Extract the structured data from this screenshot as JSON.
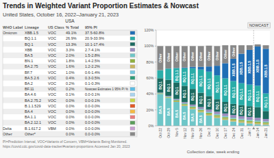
{
  "chart_data": [
    {
      "type": "table",
      "title": "USA",
      "columns": [
        "WHO Label",
        "Lineage",
        "US Class",
        "% Total",
        "95% PI"
      ],
      "rows": [
        [
          "Omicron",
          "XBB.1.5",
          "VOC",
          "49.1%",
          "37.5-60.8%"
        ],
        [
          null,
          "BQ.1.1",
          "VOC",
          "26.9%",
          "20.9-33.9%"
        ],
        [
          null,
          "BQ.1",
          "VOC",
          "13.3%",
          "10.1-17.4%"
        ],
        [
          null,
          "XBB",
          "VOC",
          "3.3%",
          "2.7-4.1%"
        ],
        [
          null,
          "BA.5",
          "VOC",
          "2.0%",
          "1.5-2.8%"
        ],
        [
          null,
          "BN.1",
          "VOC",
          "1.8%",
          "1.4-2.5%"
        ],
        [
          null,
          "BA.2.75",
          "VOC",
          "1.6%",
          "1.2-2.2%"
        ],
        [
          null,
          "BF.7",
          "VOC",
          "1.0%",
          "0.6-1.4%"
        ],
        [
          null,
          "BA.5.2.6",
          "VOC",
          "0.4%",
          "0.3-0.5%"
        ],
        [
          null,
          "BA.2",
          "VOC",
          "0.2%",
          "0.1-0.3%"
        ],
        [
          null,
          "BF.11",
          "VOC",
          "0.2%",
          "Nowcast Estimates 1 95% PI %"
        ],
        [
          null,
          "BA.4.6",
          "VOC",
          "0.1%",
          "0.0-0.1%"
        ],
        [
          null,
          "BA.2.75.2",
          "VOC",
          "0.0%",
          "0.0-0.1%"
        ],
        [
          null,
          "B.1.1.529",
          "VOC",
          "0.0%",
          "0.0-0.0%"
        ],
        [
          null,
          "BA.4",
          "VOC",
          "0.0%",
          "0.0-0.0%"
        ],
        [
          null,
          "BA.1.1",
          "VOC",
          "0.0%",
          "0.0-0.0%"
        ],
        [
          null,
          "BA.2.12.1",
          "VOC",
          "0.0%",
          "0.0-0.0%"
        ],
        [
          "Delta",
          "B.1.617.2",
          "VBM",
          "0.0%",
          "0.0-0.0%"
        ],
        [
          "Other",
          "Other*",
          null,
          "0.0%",
          "0.0-0.0%"
        ]
      ],
      "colors": [
        "#1f6eb5",
        "#2aada8",
        "#1d6b61",
        "#9b8dbe",
        "#6ec6c8",
        "#8fb040",
        "#c8b560",
        "#7bc8e0",
        "#2e9b78",
        "#ffffff",
        "#5bbce4",
        "#aad4ef",
        "#c8d84b",
        "#e05a28",
        "#f5b942",
        "#e87d7d",
        "#5b9e5b",
        "#c8a0d2",
        "#888888"
      ]
    },
    {
      "type": "bar",
      "stacked": true,
      "grid": true,
      "title": "Trends in Weighted Variant Proportion Estimates & Nowcast",
      "subtitle": "United States, October 16, 2022–January 21, 2023",
      "xlabel": "Collection date, week ending",
      "annotations": [
        "NOWCAST"
      ],
      "footnote": "PI=Prediction Interval, VOC=Variants of Concern, VBM=Variants Being Monitored. https://covid.cdc.gov/covid-data-tracker/#variant-proportions Accessed Jan 20, 2023",
      "categories": [
        "Oct 22",
        "Oct 29",
        "Nov 5",
        "Nov 12",
        "Nov 19",
        "Nov 26",
        "Dec 3",
        "Dec 10",
        "Dec 17",
        "Dec 24",
        "Dec 31",
        "Jan 7",
        "Jan 14",
        "Jan 21"
      ],
      "series": [
        {
          "name": "BA.5",
          "color": "#6ec6c8",
          "values": [
            40.0,
            35.0,
            30.0,
            25.0,
            21.0,
            17.0,
            13.0,
            10.0,
            7.5,
            5.5,
            4.0,
            3.0,
            2.0,
            1.5
          ]
        },
        {
          "name": "BA.2.75",
          "color": "#c8b560",
          "values": [
            0.3,
            0.5,
            0.8,
            1.0,
            1.2,
            1.4,
            1.5,
            1.6,
            1.6,
            1.6,
            1.6,
            1.6,
            1.6,
            1.4
          ]
        },
        {
          "name": "BN.1",
          "color": "#8fb040",
          "values": [
            0.5,
            0.8,
            1.0,
            1.3,
            1.5,
            1.6,
            1.7,
            1.8,
            1.8,
            1.8,
            1.8,
            1.8,
            1.8,
            1.5
          ]
        },
        {
          "name": "BF.7",
          "color": "#7bc8e0",
          "values": [
            0.2,
            0.3,
            0.5,
            0.7,
            0.8,
            0.9,
            1.0,
            1.0,
            1.0,
            1.0,
            1.0,
            1.0,
            1.0,
            0.9
          ]
        },
        {
          "name": "BA.5.2.6",
          "color": "#2e9b78",
          "values": [
            0.2,
            0.3,
            0.4,
            0.4,
            0.4,
            0.4,
            0.4,
            0.4,
            0.4,
            0.4,
            0.4,
            0.4,
            0.4,
            0.3
          ]
        },
        {
          "name": "XBB",
          "color": "#9b8dbe",
          "values": [
            0.5,
            0.8,
            1.0,
            1.3,
            1.8,
            2.2,
            2.8,
            3.0,
            3.2,
            3.3,
            3.3,
            3.4,
            3.3,
            3.0
          ]
        },
        {
          "name": "BQ.1",
          "color": "#1d6b61",
          "values": [
            18.0,
            20.0,
            20.5,
            20.5,
            19.5,
            18.0,
            17.0,
            15.5,
            14.5,
            14.0,
            13.8,
            13.5,
            13.3,
            10.0
          ]
        },
        {
          "name": "BQ.1.1",
          "color": "#2aada8",
          "values": [
            10.0,
            14.0,
            18.0,
            22.0,
            26.0,
            29.0,
            30.5,
            30.0,
            29.5,
            28.5,
            27.5,
            27.0,
            26.9,
            22.0
          ]
        },
        {
          "name": "XBB.1.5",
          "color": "#1f6eb5",
          "values": [
            0.1,
            0.2,
            0.4,
            0.9,
            1.8,
            3.5,
            6.5,
            12.0,
            19.0,
            28.0,
            37.0,
            43.5,
            49.1,
            56.0
          ]
        },
        {
          "name": "Other",
          "color": "#888888",
          "values": [
            30.2,
            28.1,
            27.4,
            26.9,
            26.0,
            26.0,
            26.1,
            24.7,
            22.5,
            16.9,
            10.6,
            5.8,
            2.7,
            4.4
          ]
        }
      ],
      "ylim": [
        0,
        120
      ],
      "yticks": [
        {
          "value": 0,
          "label": "0%"
        },
        {
          "value": 20,
          "label": "20%"
        },
        {
          "value": 40,
          "label": "40%"
        },
        {
          "value": 60,
          "label": "60%"
        },
        {
          "value": 80,
          "label": "80%"
        },
        {
          "value": 100,
          "label": "100%"
        },
        {
          "value": 120,
          "label": "120%"
        }
      ]
    }
  ]
}
